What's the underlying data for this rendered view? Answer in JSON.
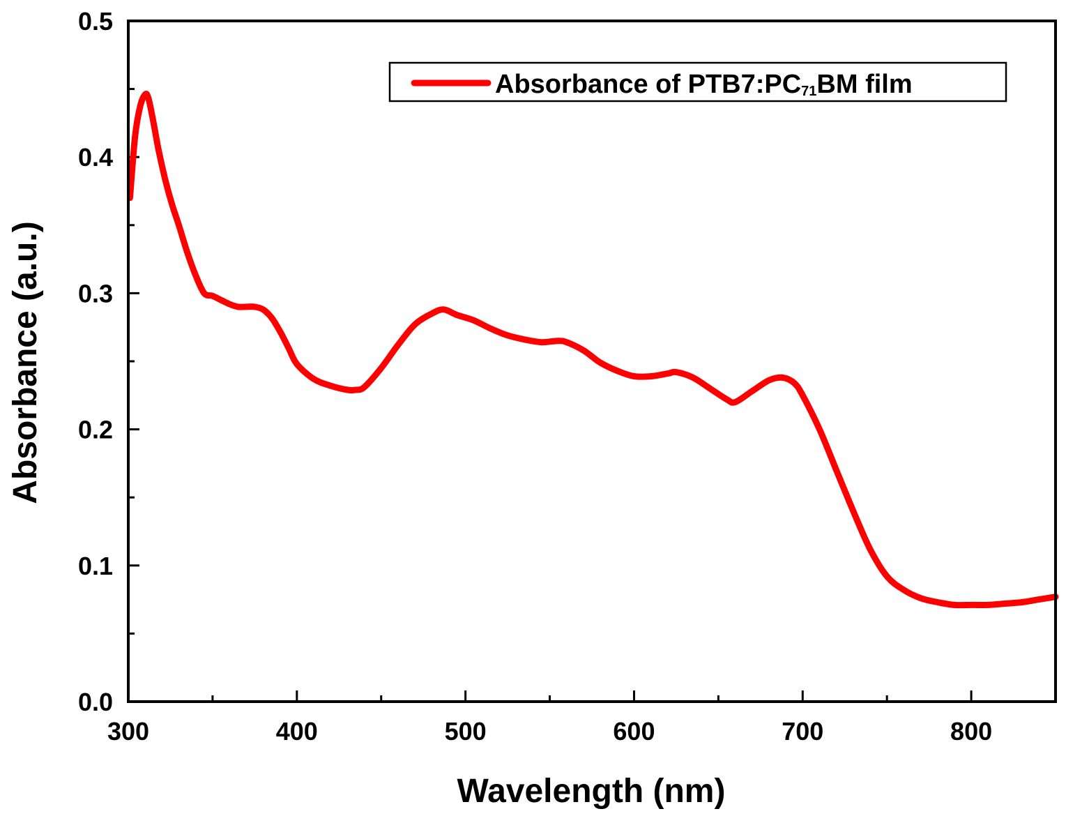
{
  "chart_data": {
    "type": "line",
    "title": "",
    "xlabel": "Wavelength (nm)",
    "ylabel": "Absorbance (a.u.)",
    "xlim": [
      300,
      850
    ],
    "ylim": [
      0.0,
      0.5
    ],
    "x_major_ticks": [
      300,
      400,
      500,
      600,
      700,
      800
    ],
    "x_tick_labels": [
      "300",
      "400",
      "500",
      "600",
      "700",
      "800"
    ],
    "x_minor_ticks": [
      350,
      450,
      550,
      650,
      750
    ],
    "y_major_ticks": [
      0.0,
      0.1,
      0.2,
      0.3,
      0.4,
      0.5
    ],
    "y_tick_labels": [
      "0.0",
      "0.1",
      "0.2",
      "0.3",
      "0.4",
      "0.5"
    ],
    "y_minor_ticks": [
      0.05,
      0.15,
      0.25,
      0.35,
      0.45
    ],
    "grid": false,
    "legend": {
      "position": "top-right",
      "label_main": "Absorbance of PTB7:PC",
      "label_sub": "71",
      "label_tail": "BM film"
    },
    "series": [
      {
        "name": "Absorbance of PTB7:PC71BM film",
        "color": "#ff0000",
        "x": [
          301,
          304,
          307,
          310,
          312,
          315,
          318,
          322,
          326,
          330,
          335,
          340,
          345,
          350,
          355,
          360,
          365,
          370,
          375,
          380,
          385,
          390,
          395,
          400,
          410,
          420,
          430,
          435,
          440,
          450,
          460,
          470,
          480,
          487,
          495,
          505,
          515,
          525,
          535,
          545,
          555,
          560,
          570,
          580,
          590,
          600,
          610,
          620,
          625,
          635,
          645,
          655,
          660,
          670,
          680,
          688,
          695,
          700,
          710,
          720,
          730,
          740,
          750,
          760,
          770,
          780,
          790,
          800,
          810,
          820,
          830,
          840,
          850
        ],
        "y": [
          0.37,
          0.415,
          0.437,
          0.446,
          0.443,
          0.425,
          0.405,
          0.383,
          0.365,
          0.35,
          0.33,
          0.313,
          0.3,
          0.298,
          0.295,
          0.292,
          0.29,
          0.29,
          0.29,
          0.288,
          0.282,
          0.272,
          0.26,
          0.248,
          0.237,
          0.232,
          0.229,
          0.229,
          0.231,
          0.245,
          0.262,
          0.277,
          0.285,
          0.288,
          0.284,
          0.28,
          0.274,
          0.269,
          0.266,
          0.264,
          0.265,
          0.264,
          0.258,
          0.249,
          0.243,
          0.239,
          0.239,
          0.241,
          0.242,
          0.238,
          0.23,
          0.222,
          0.22,
          0.228,
          0.236,
          0.238,
          0.234,
          0.225,
          0.2,
          0.17,
          0.14,
          0.112,
          0.092,
          0.082,
          0.076,
          0.073,
          0.071,
          0.071,
          0.071,
          0.072,
          0.073,
          0.075,
          0.077
        ]
      }
    ]
  }
}
